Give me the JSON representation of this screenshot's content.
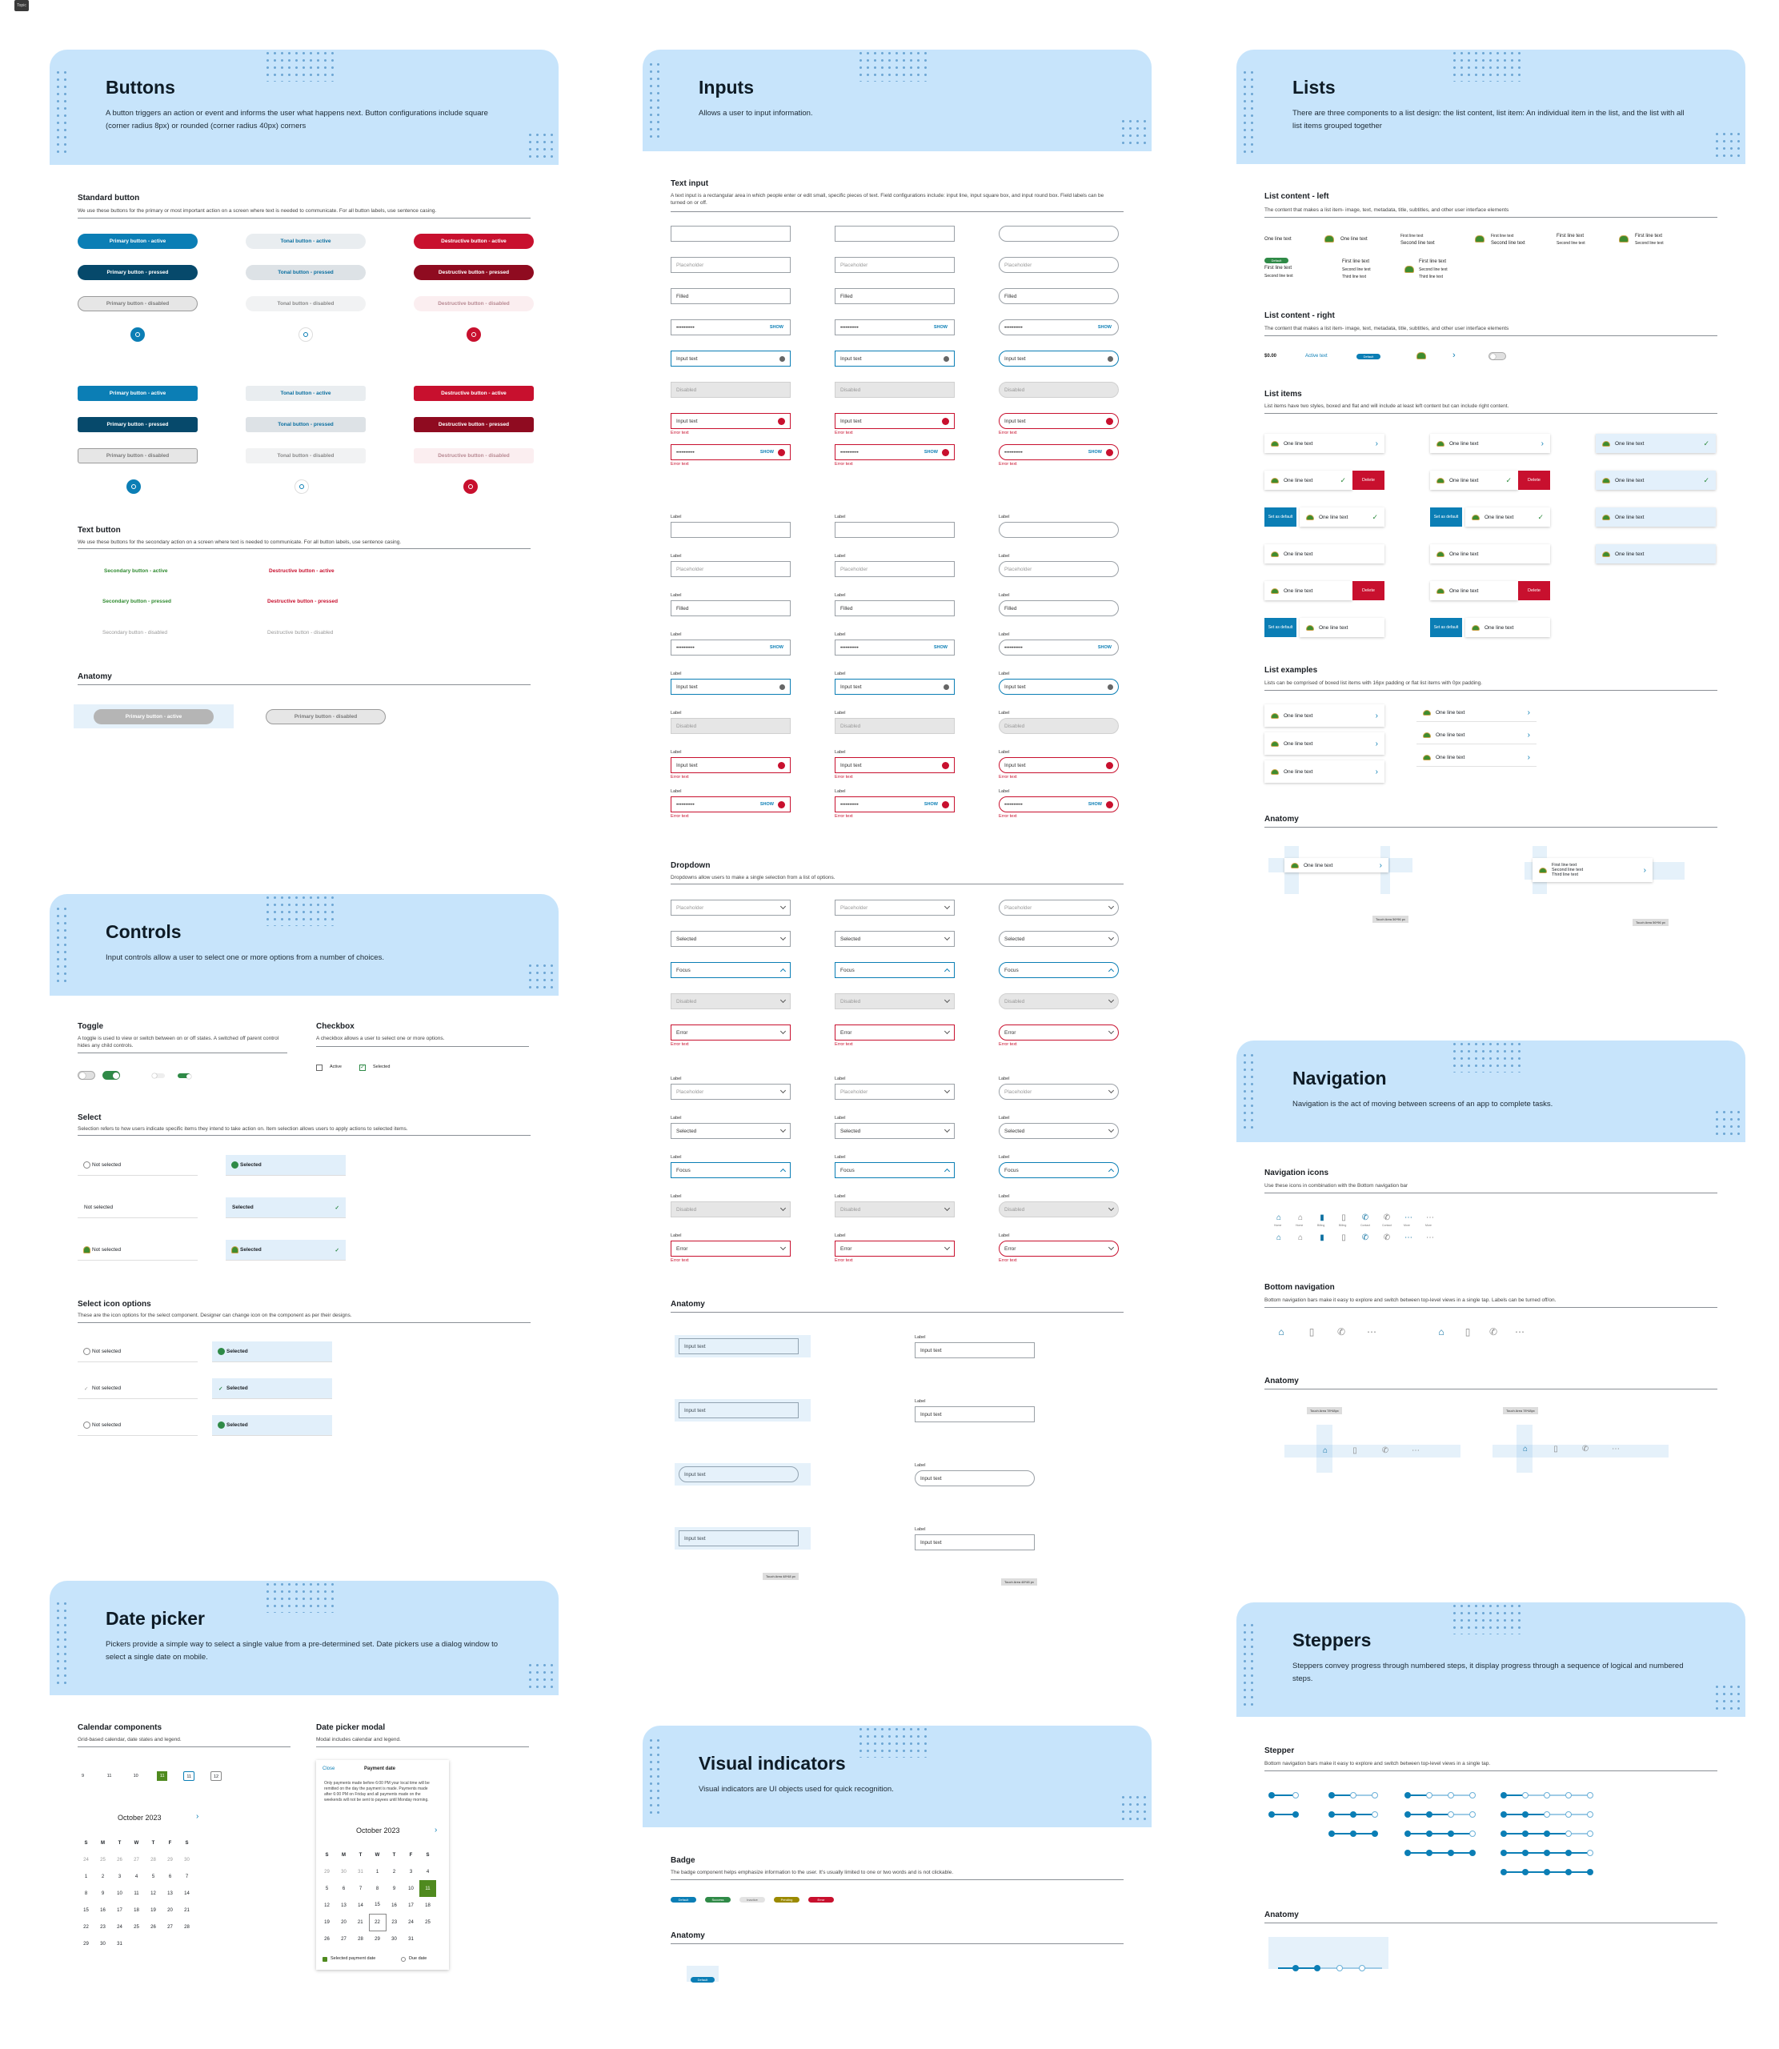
{
  "topbadge": "Topic",
  "buttons": {
    "title": "Buttons",
    "desc": "A button triggers an action or event and informs the user what happens next. Button configurations include square (corner radius 8px) or rounded (corner radius 40px) corners",
    "std_h": "Standard button",
    "std_d": "We use these buttons for the primary or most important action on a screen where text is needed to communicate. For all button labels, use sentence casing.",
    "primary_active": "Primary button - active",
    "primary_pressed": "Primary button - pressed",
    "primary_disabled": "Primary button - disabled",
    "tonal_active": "Tonal button - active",
    "tonal_pressed": "Tonal button - pressed",
    "tonal_disabled": "Tonal button - disabled",
    "destr_active": "Destructive button - active",
    "destr_pressed": "Destructive button - pressed",
    "destr_disabled": "Destructive button - disabled",
    "text_h": "Text button",
    "text_d": "We use these buttons for the secondary action on a screen where text is needed to communicate. For all button labels, use sentence casing.",
    "sec_active": "Secondary button - active",
    "sec_pressed": "Secondary button - pressed",
    "sec_disabled": "Secondary button - disabled",
    "dtext_active": "Destructive button - active",
    "dtext_pressed": "Destructive button - pressed",
    "dtext_disabled": "Destructive button - disabled",
    "anatomy": "Anatomy",
    "anat_primary": "Primary button - active",
    "anat_disabled": "Primary button - disabled"
  },
  "controls": {
    "title": "Controls",
    "desc": "Input controls allow a user to select one or more options from a number of choices.",
    "toggle_h": "Toggle",
    "toggle_d": "A toggle is used to view or switch between on or off states. A switched off parent control hides any child controls.",
    "checkbox_h": "Checkbox",
    "checkbox_d": "A checkbox allows a user to select one or more options.",
    "cb_active": "Active",
    "cb_selected": "Selected",
    "select_h": "Select",
    "select_d": "Selection refers to how users indicate specific items they intend to take action on. Item selection allows users to apply actions to selected items.",
    "not_selected": "Not selected",
    "selected": "Selected",
    "icon_h": "Select icon options",
    "icon_d": "These are the icon options for the select component. Designer can change icon on the component as per their designs."
  },
  "datepicker": {
    "title": "Date picker",
    "desc": "Pickers provide a simple way to select a single value from a pre-determined set. Date pickers use a dialog window to select a single date on mobile.",
    "cal_h": "Calendar components",
    "cal_d": "Grid-based calendar, date states and legend.",
    "modal_h": "Date picker modal",
    "modal_d": "Modal includes calendar and legend.",
    "month": "October 2023",
    "days": [
      "S",
      "M",
      "T",
      "W",
      "T",
      "F",
      "S"
    ],
    "strip": [
      "9",
      "11",
      "10",
      "11",
      "11",
      "12"
    ],
    "weeks": [
      [
        "24",
        "25",
        "26",
        "27",
        "28",
        "29",
        "30"
      ],
      [
        "1",
        "2",
        "3",
        "4",
        "5",
        "6",
        "7"
      ],
      [
        "8",
        "9",
        "10",
        "11",
        "12",
        "13",
        "14"
      ],
      [
        "15",
        "16",
        "17",
        "18",
        "19",
        "20",
        "21"
      ],
      [
        "22",
        "23",
        "24",
        "25",
        "26",
        "27",
        "28"
      ],
      [
        "29",
        "30",
        "31",
        "",
        "",
        "",
        ""
      ]
    ],
    "weeks1": [
      [
        "29",
        "30",
        "31",
        "1",
        "2",
        "3",
        "4"
      ],
      [
        "5",
        "6",
        "7",
        "8",
        "9",
        "10",
        "11"
      ],
      [
        "12",
        "13",
        "14",
        "15",
        "16",
        "17",
        "18"
      ],
      [
        "19",
        "20",
        "21",
        "22",
        "23",
        "24",
        "25"
      ],
      [
        "26",
        "27",
        "28",
        "29",
        "30",
        "31",
        ""
      ]
    ],
    "close": "Close",
    "payment_date": "Payment date",
    "modal_text": "Only payments made before 6:00 PM your local time will be remitted on the day the payment is made. Payments made after 6:00 PM on Friday and all payments made on the weekends will not be sent to payees until Monday morning.",
    "legend_sel": "Selected payment date",
    "legend_due": "Due date"
  },
  "inputs": {
    "title": "Inputs",
    "desc": "Allows a user to input information.",
    "text_h": "Text input",
    "text_d": "A text input is a rectangular area in which people enter or edit small, specific pieces of text. Field configurations include: input line, input square box, and input round box. Field labels can be turned on or off.",
    "placeholder": "Placeholder",
    "filled": "Filled",
    "pw": "••••••••••",
    "show": "SHOW",
    "input_text": "Input text",
    "disabled": "Disabled",
    "error_text": "Error text",
    "label": "Label",
    "dd_h": "Dropdown",
    "dd_d": "Dropdowns allow users to make a single selection from a list of options.",
    "dd_selected": "Selected",
    "dd_focus": "Focus",
    "dd_error": "Error",
    "anatomy": "Anatomy",
    "touch": "Touch Area 48*48 px"
  },
  "visual": {
    "title": "Visual indicators",
    "desc": "Visual indicators are UI objects used for quick recognition.",
    "badge_h": "Badge",
    "badge_d": "The badge component helps emphasize information to the user. It's usually limited to one or two words and is not clickable.",
    "badges": [
      {
        "t": "Default",
        "c": "#0b7eb5"
      },
      {
        "t": "Success",
        "c": "#2f8a47"
      },
      {
        "t": "Inactive",
        "c": "#e3e3e3"
      },
      {
        "t": "Pending",
        "c": "#9b8a00"
      },
      {
        "t": "Error",
        "c": "#c8102e"
      }
    ],
    "anatomy": "Anatomy",
    "default": "Default"
  },
  "lists": {
    "title": "Lists",
    "desc": "There are three components to a list design: the list content, list item: An individual item in the list, and the list with all list items grouped together",
    "left_h": "List content - left",
    "left_d": "The content that makes a list item- image, text, metadata, title, subtitles, and other user interface elements",
    "right_h": "List content - right",
    "right_d": "The content that makes a list item- image, text, metadata, title, subtitles, and other user interface elements",
    "items_h": "List items",
    "items_d": "List items have two styles, boxed and flat and will include at least left content but can include right content.",
    "ex_h": "List examples",
    "ex_d": "Lists can be comprised of boxed list items with 16px padding or flat list items with 0px padding.",
    "one": "One line text",
    "first": "First line text",
    "second": "Second line text",
    "third": "Third line text",
    "delete": "Delete",
    "set_default": "Set as default",
    "amount": "$0.00",
    "active_text": "Active text",
    "default": "Default",
    "anatomy": "Anatomy",
    "touch": "Touch Area 56*96 px"
  },
  "navigation": {
    "title": "Navigation",
    "desc": "Navigation is the act of moving between screens of an app to complete tasks.",
    "icons_h": "Navigation icons",
    "icons_d": "Use these icons in combination with the Bottom navigation bar",
    "icon_labels": [
      "Home",
      "Home",
      "Billing",
      "Billing",
      "Contact",
      "Contact",
      "More",
      "More"
    ],
    "bottom_h": "Bottom navigation",
    "bottom_d": "Bottom navigation bars make it easy to explore and switch between top-level views in a single tap. Labels can be turned off/on.",
    "anatomy": "Anatomy",
    "touch": "Touch Area 78*48px"
  },
  "steppers": {
    "title": "Steppers",
    "desc": "Steppers convey progress through numbered steps, it display progress through a sequence of logical and numbered steps.",
    "stepper_h": "Stepper",
    "stepper_d": "Bottom navigation bars make it easy to explore and switch between top-level views in a single tap.",
    "anatomy": "Anatomy"
  }
}
